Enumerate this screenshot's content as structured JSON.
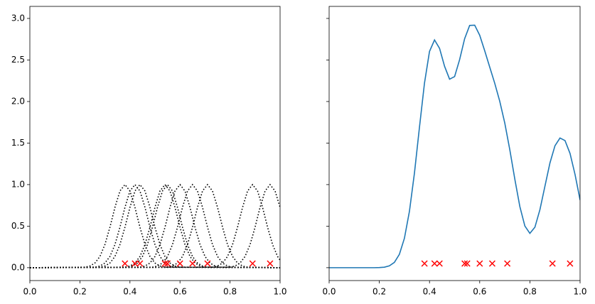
{
  "chart_data": [
    {
      "type": "line",
      "xlim": [
        0,
        1
      ],
      "ylim": [
        -0.155,
        3.145
      ],
      "xticks": [
        {
          "value": 0,
          "label": "0.0"
        },
        {
          "value": 0.2,
          "label": "0.2"
        },
        {
          "value": 0.4,
          "label": "0.4"
        },
        {
          "value": 0.6,
          "label": "0.6"
        },
        {
          "value": 0.8,
          "label": "0.8"
        },
        {
          "value": 1,
          "label": "1.0"
        }
      ],
      "yticks": [
        {
          "value": 0,
          "label": "0.0"
        },
        {
          "value": 0.5,
          "label": "0.5"
        },
        {
          "value": 1,
          "label": "1.0"
        },
        {
          "value": 1.5,
          "label": "1.5"
        },
        {
          "value": 2,
          "label": "2.0"
        },
        {
          "value": 2.5,
          "label": "2.5"
        },
        {
          "value": 3,
          "label": "3.0"
        }
      ],
      "show_ytick_labels": true,
      "series": [
        {
          "color": "#000000",
          "linestyle": "dotted",
          "x": [
            0,
            0.22,
            0.24,
            0.26,
            0.28,
            0.3,
            0.32,
            0.34,
            0.36,
            0.38,
            0.4,
            0.42,
            0.44,
            0.46,
            0.48,
            0.5,
            0.52,
            0.54,
            1
          ],
          "values": [
            0,
            0.006,
            0.02,
            0.056,
            0.135,
            0.278,
            0.487,
            0.726,
            0.923,
            1,
            0.923,
            0.726,
            0.487,
            0.278,
            0.135,
            0.056,
            0.02,
            0.006,
            0
          ]
        },
        {
          "color": "#000000",
          "linestyle": "dotted",
          "x": [
            0,
            0.26,
            0.28,
            0.3,
            0.32,
            0.34,
            0.36,
            0.38,
            0.4,
            0.42,
            0.44,
            0.46,
            0.48,
            0.5,
            0.52,
            0.54,
            0.56,
            0.58,
            1
          ],
          "values": [
            0,
            0.006,
            0.02,
            0.056,
            0.135,
            0.278,
            0.487,
            0.726,
            0.923,
            1,
            0.923,
            0.726,
            0.487,
            0.278,
            0.135,
            0.056,
            0.02,
            0.006,
            0
          ]
        },
        {
          "color": "#000000",
          "linestyle": "dotted",
          "x": [
            0,
            0.28,
            0.3,
            0.32,
            0.34,
            0.36,
            0.38,
            0.4,
            0.42,
            0.44,
            0.46,
            0.48,
            0.5,
            0.52,
            0.54,
            0.56,
            0.58,
            0.6,
            1
          ],
          "values": [
            0,
            0.006,
            0.02,
            0.056,
            0.135,
            0.278,
            0.487,
            0.726,
            0.923,
            1,
            0.923,
            0.726,
            0.487,
            0.278,
            0.135,
            0.056,
            0.02,
            0.006,
            0
          ]
        },
        {
          "color": "#000000",
          "linestyle": "dotted",
          "x": [
            0,
            0.38,
            0.4,
            0.42,
            0.44,
            0.46,
            0.48,
            0.5,
            0.52,
            0.54,
            0.56,
            0.58,
            0.6,
            0.62,
            0.64,
            0.66,
            0.68,
            0.7,
            1
          ],
          "values": [
            0,
            0.006,
            0.02,
            0.056,
            0.135,
            0.278,
            0.487,
            0.726,
            0.923,
            1,
            0.923,
            0.726,
            0.487,
            0.278,
            0.135,
            0.056,
            0.02,
            0.006,
            0
          ]
        },
        {
          "color": "#000000",
          "linestyle": "dotted",
          "x": [
            0,
            0.39,
            0.41,
            0.43,
            0.45,
            0.47,
            0.49,
            0.51,
            0.53,
            0.55,
            0.57,
            0.59,
            0.61,
            0.63,
            0.65,
            0.67,
            0.69,
            0.71,
            1
          ],
          "values": [
            0,
            0.006,
            0.02,
            0.056,
            0.135,
            0.278,
            0.487,
            0.726,
            0.923,
            1,
            0.923,
            0.726,
            0.487,
            0.278,
            0.135,
            0.056,
            0.02,
            0.006,
            0
          ]
        },
        {
          "color": "#000000",
          "linestyle": "dotted",
          "x": [
            0,
            0.44,
            0.46,
            0.48,
            0.5,
            0.52,
            0.54,
            0.56,
            0.58,
            0.6,
            0.62,
            0.64,
            0.66,
            0.68,
            0.7,
            0.72,
            0.74,
            0.76,
            1
          ],
          "values": [
            0,
            0.006,
            0.02,
            0.056,
            0.135,
            0.278,
            0.487,
            0.726,
            0.923,
            1,
            0.923,
            0.726,
            0.487,
            0.278,
            0.135,
            0.056,
            0.02,
            0.006,
            0
          ]
        },
        {
          "color": "#000000",
          "linestyle": "dotted",
          "x": [
            0,
            0.49,
            0.51,
            0.53,
            0.55,
            0.57,
            0.59,
            0.61,
            0.63,
            0.65,
            0.67,
            0.69,
            0.71,
            0.73,
            0.75,
            0.77,
            0.79,
            0.81,
            1
          ],
          "values": [
            0,
            0.006,
            0.02,
            0.056,
            0.135,
            0.278,
            0.487,
            0.726,
            0.923,
            1,
            0.923,
            0.726,
            0.487,
            0.278,
            0.135,
            0.056,
            0.02,
            0.006,
            0
          ]
        },
        {
          "color": "#000000",
          "linestyle": "dotted",
          "x": [
            0,
            0.55,
            0.57,
            0.59,
            0.61,
            0.63,
            0.65,
            0.67,
            0.69,
            0.71,
            0.73,
            0.75,
            0.77,
            0.79,
            0.81,
            0.83,
            0.85,
            0.87,
            1
          ],
          "values": [
            0,
            0.006,
            0.02,
            0.056,
            0.135,
            0.278,
            0.487,
            0.726,
            0.923,
            1,
            0.923,
            0.726,
            0.487,
            0.278,
            0.135,
            0.056,
            0.02,
            0.006,
            0
          ]
        },
        {
          "color": "#000000",
          "linestyle": "dotted",
          "x": [
            0,
            0.73,
            0.75,
            0.77,
            0.79,
            0.81,
            0.83,
            0.85,
            0.87,
            0.89,
            0.91,
            0.93,
            0.95,
            0.97,
            0.99,
            1
          ],
          "values": [
            0,
            0.006,
            0.02,
            0.056,
            0.135,
            0.278,
            0.487,
            0.726,
            0.923,
            1,
            0.923,
            0.726,
            0.487,
            0.278,
            0.135,
            0.089
          ]
        },
        {
          "color": "#000000",
          "linestyle": "dotted",
          "x": [
            0,
            0.8,
            0.82,
            0.84,
            0.86,
            0.88,
            0.9,
            0.92,
            0.94,
            0.96,
            0.98,
            1
          ],
          "values": [
            0,
            0.006,
            0.02,
            0.056,
            0.135,
            0.278,
            0.487,
            0.726,
            0.923,
            1,
            0.923,
            0.726
          ]
        }
      ],
      "markers": {
        "marker": "x",
        "color": "#ff0000",
        "x": [
          0.38,
          0.42,
          0.44,
          0.54,
          0.55,
          0.6,
          0.65,
          0.71,
          0.89,
          0.96
        ],
        "y": [
          0.05,
          0.05,
          0.05,
          0.05,
          0.05,
          0.05,
          0.05,
          0.05,
          0.05,
          0.05
        ]
      }
    },
    {
      "type": "line",
      "xlim": [
        0,
        1
      ],
      "ylim": [
        -0.155,
        3.145
      ],
      "xticks": [
        {
          "value": 0,
          "label": "0.0"
        },
        {
          "value": 0.2,
          "label": "0.2"
        },
        {
          "value": 0.4,
          "label": "0.4"
        },
        {
          "value": 0.6,
          "label": "0.6"
        },
        {
          "value": 0.8,
          "label": "0.8"
        },
        {
          "value": 1,
          "label": "1.0"
        }
      ],
      "yticks": [
        0,
        0.5,
        1,
        1.5,
        2,
        2.5,
        3
      ],
      "show_ytick_labels": false,
      "series": [
        {
          "color": "#1f77b4",
          "linestyle": "solid",
          "x": [
            0,
            0.02,
            0.04,
            0.06,
            0.08,
            0.1,
            0.12,
            0.14,
            0.16,
            0.18,
            0.2,
            0.22,
            0.24,
            0.26,
            0.28,
            0.3,
            0.32,
            0.34,
            0.36,
            0.38,
            0.4,
            0.42,
            0.44,
            0.46,
            0.48,
            0.5,
            0.52,
            0.54,
            0.56,
            0.58,
            0.6,
            0.62,
            0.64,
            0.66,
            0.68,
            0.7,
            0.72,
            0.74,
            0.76,
            0.78,
            0.8,
            0.82,
            0.84,
            0.86,
            0.88,
            0.9,
            0.92,
            0.94,
            0.96,
            0.98,
            1
          ],
          "values": [
            0,
            0,
            0,
            0,
            0,
            0,
            0,
            0,
            0,
            0,
            0.002,
            0.006,
            0.022,
            0.064,
            0.161,
            0.354,
            0.678,
            1.139,
            1.691,
            2.222,
            2.603,
            2.741,
            2.64,
            2.424,
            2.269,
            2.3,
            2.504,
            2.756,
            2.916,
            2.919,
            2.798,
            2.611,
            2.414,
            2.219,
            2.002,
            1.74,
            1.419,
            1.065,
            0.736,
            0.502,
            0.413,
            0.487,
            0.698,
            0.981,
            1.261,
            1.468,
            1.561,
            1.53,
            1.375,
            1.121,
            0.815
          ]
        }
      ],
      "markers": {
        "marker": "x",
        "color": "#ff0000",
        "x": [
          0.38,
          0.42,
          0.44,
          0.54,
          0.55,
          0.6,
          0.65,
          0.71,
          0.89,
          0.96
        ],
        "y": [
          0.05,
          0.05,
          0.05,
          0.05,
          0.05,
          0.05,
          0.05,
          0.05,
          0.05,
          0.05
        ]
      }
    }
  ]
}
